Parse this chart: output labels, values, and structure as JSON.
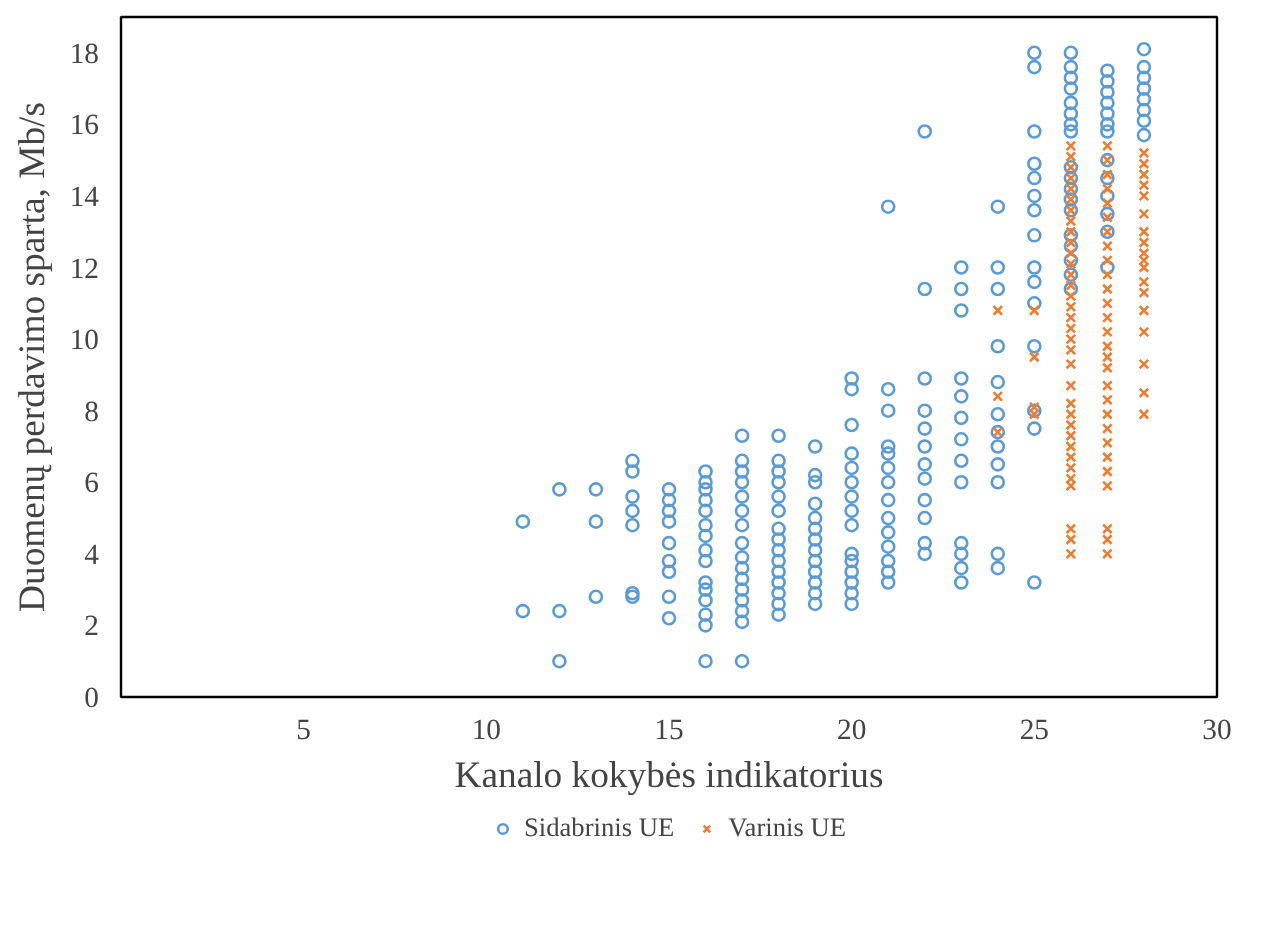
{
  "chart_data": {
    "type": "scatter",
    "xlabel": "Kanalo kokybės indikatorius",
    "ylabel": "Duomenų perdavimo sparta, Mb/s",
    "xlim": [
      0,
      30
    ],
    "ylim": [
      0,
      19
    ],
    "xticks": [
      5,
      10,
      15,
      20,
      25,
      30
    ],
    "yticks": [
      0,
      2,
      4,
      6,
      8,
      10,
      12,
      14,
      16,
      18
    ],
    "grid": false,
    "legend": "bottom",
    "series": [
      {
        "name": "Sidabrinis UE",
        "color": "#5b9bd5",
        "marker": "circle",
        "x": [
          11,
          11,
          12,
          12,
          12,
          13,
          13,
          13,
          14,
          14,
          14,
          14,
          14,
          14,
          14,
          15,
          15,
          15,
          15,
          15,
          15,
          15,
          15,
          15,
          16,
          16,
          16,
          16,
          16,
          16,
          16,
          16,
          16,
          16,
          16,
          16,
          16,
          16,
          16,
          17,
          17,
          17,
          17,
          17,
          17,
          17,
          17,
          17,
          17,
          17,
          17,
          17,
          17,
          17,
          17,
          18,
          18,
          18,
          18,
          18,
          18,
          18,
          18,
          18,
          18,
          18,
          18,
          18,
          18,
          18,
          19,
          19,
          19,
          19,
          19,
          19,
          19,
          19,
          19,
          19,
          19,
          19,
          19,
          20,
          20,
          20,
          20,
          20,
          20,
          20,
          20,
          20,
          20,
          20,
          20,
          20,
          20,
          20,
          21,
          21,
          21,
          21,
          21,
          21,
          21,
          21,
          21,
          21,
          21,
          21,
          21,
          21,
          22,
          22,
          22,
          22,
          22,
          22,
          22,
          22,
          22,
          22,
          22,
          22,
          23,
          23,
          23,
          23,
          23,
          23,
          23,
          23,
          23,
          23,
          23,
          23,
          23,
          24,
          24,
          24,
          24,
          24,
          24,
          24,
          24,
          24,
          24,
          24,
          24,
          25,
          25,
          25,
          25,
          25,
          25,
          25,
          25,
          25,
          25,
          25,
          25,
          25,
          25,
          25,
          26,
          26,
          26,
          26,
          26,
          26,
          26,
          26,
          26,
          26,
          26,
          26,
          26,
          26,
          26,
          26,
          26,
          26,
          27,
          27,
          27,
          27,
          27,
          27,
          27,
          27,
          27,
          27,
          27,
          27,
          27,
          28,
          28,
          28,
          28,
          28,
          28,
          28,
          28
        ],
        "values": [
          4.9,
          2.4,
          5.8,
          2.4,
          1.0,
          5.8,
          4.9,
          2.8,
          6.6,
          6.3,
          5.6,
          5.2,
          4.8,
          2.9,
          2.8,
          5.8,
          5.5,
          5.2,
          4.9,
          4.3,
          3.8,
          3.5,
          2.8,
          2.2,
          6.3,
          6.0,
          5.8,
          5.5,
          5.2,
          4.8,
          4.5,
          4.1,
          3.8,
          3.2,
          3.0,
          2.7,
          2.3,
          2.0,
          1.0,
          7.3,
          6.6,
          6.3,
          6.0,
          5.6,
          5.2,
          4.8,
          4.3,
          3.9,
          3.6,
          3.3,
          3.0,
          2.7,
          2.4,
          2.1,
          1.0,
          7.3,
          6.6,
          6.3,
          6.0,
          5.6,
          5.2,
          4.7,
          4.4,
          4.1,
          3.8,
          3.5,
          3.2,
          2.9,
          2.6,
          2.3,
          7.0,
          6.2,
          6.0,
          5.4,
          5.0,
          4.7,
          4.4,
          4.1,
          3.8,
          3.5,
          3.2,
          2.9,
          2.6,
          8.9,
          8.6,
          7.6,
          6.8,
          6.4,
          6.0,
          5.6,
          5.2,
          4.8,
          4.0,
          3.8,
          3.5,
          3.2,
          2.9,
          2.6,
          13.7,
          8.6,
          8.0,
          7.0,
          6.8,
          6.4,
          6.0,
          5.5,
          5.0,
          4.6,
          4.2,
          3.8,
          3.5,
          3.2,
          15.8,
          11.4,
          8.9,
          8.0,
          7.5,
          7.0,
          6.5,
          6.1,
          5.5,
          5.0,
          4.3,
          4.0,
          12.0,
          11.4,
          10.8,
          8.9,
          8.4,
          7.8,
          7.2,
          6.6,
          6.0,
          4.3,
          4.0,
          3.6,
          3.2,
          13.7,
          12.0,
          11.4,
          9.8,
          8.8,
          7.9,
          7.4,
          7.0,
          6.5,
          6.0,
          4.0,
          3.6,
          18.0,
          17.6,
          15.8,
          14.9,
          14.5,
          14.0,
          13.6,
          12.9,
          12.0,
          11.6,
          11.0,
          9.8,
          8.0,
          7.5,
          3.2,
          18.0,
          17.6,
          17.3,
          17.0,
          16.6,
          16.3,
          16.0,
          15.8,
          14.8,
          14.5,
          14.2,
          13.9,
          13.6,
          12.9,
          12.6,
          12.2,
          11.8,
          11.4,
          17.5,
          17.2,
          16.9,
          16.6,
          16.3,
          16.0,
          15.8,
          15.0,
          14.5,
          14.0,
          13.5,
          13.0,
          12.0,
          18.1,
          17.6,
          17.3,
          17.0,
          16.7,
          16.4,
          16.1,
          15.7
        ]
      },
      {
        "name": "Varinis UE",
        "color": "#ed7d31",
        "marker": "cross",
        "x": [
          24,
          24,
          24,
          25,
          25,
          25,
          25,
          26,
          26,
          26,
          26,
          26,
          26,
          26,
          26,
          26,
          26,
          26,
          26,
          26,
          26,
          26,
          26,
          26,
          26,
          26,
          26,
          26,
          26,
          26,
          26,
          26,
          26,
          26,
          26,
          26,
          26,
          26,
          26,
          26,
          26,
          27,
          27,
          27,
          27,
          27,
          27,
          27,
          27,
          27,
          27,
          27,
          27,
          27,
          27,
          27,
          27,
          27,
          27,
          27,
          27,
          27,
          27,
          27,
          27,
          27,
          27,
          27,
          27,
          28,
          28,
          28,
          28,
          28,
          28,
          28,
          28,
          28,
          28,
          28,
          28,
          28,
          28,
          28,
          28,
          28,
          28
        ],
        "values": [
          10.8,
          8.4,
          7.4,
          10.8,
          9.5,
          8.1,
          7.9,
          15.4,
          15.1,
          14.8,
          14.5,
          14.2,
          13.9,
          13.6,
          13.3,
          13.0,
          12.7,
          12.4,
          12.1,
          11.8,
          11.5,
          11.2,
          10.9,
          10.6,
          10.3,
          10.0,
          9.7,
          9.3,
          8.7,
          8.2,
          7.9,
          7.6,
          7.3,
          7.0,
          6.7,
          6.4,
          6.1,
          5.9,
          4.7,
          4.4,
          4.0,
          15.4,
          15.0,
          14.6,
          14.2,
          13.8,
          13.4,
          13.0,
          12.6,
          12.2,
          11.8,
          11.4,
          11.0,
          10.6,
          10.2,
          9.8,
          9.5,
          9.2,
          8.7,
          8.3,
          7.9,
          7.5,
          7.1,
          6.7,
          6.3,
          5.9,
          4.7,
          4.4,
          4.0,
          15.2,
          14.9,
          14.6,
          14.3,
          14.0,
          13.5,
          13.0,
          12.7,
          12.4,
          12.2,
          12.0,
          11.6,
          11.3,
          10.8,
          10.2,
          9.3,
          8.5,
          7.9
        ]
      }
    ]
  }
}
